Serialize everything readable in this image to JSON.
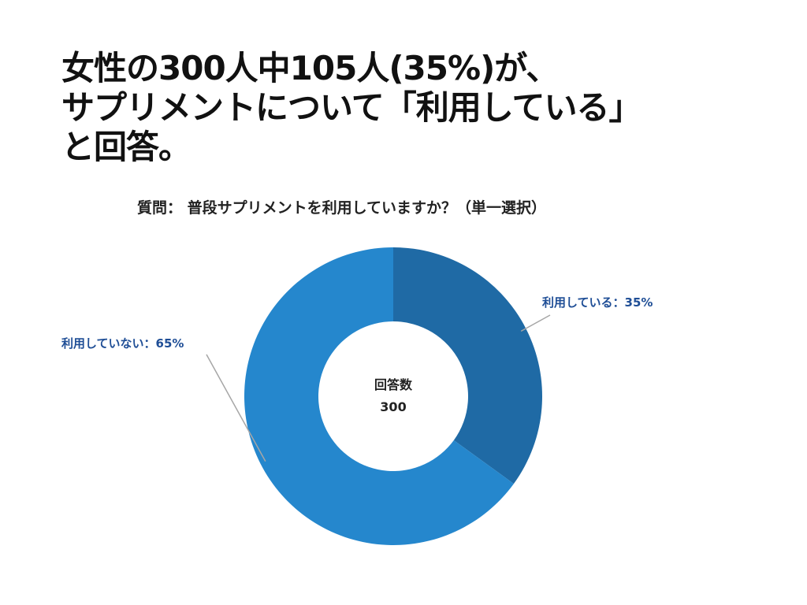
{
  "headline": {
    "line1": "女性の300人中105人(35%)が、",
    "line2": "サプリメントについて「利用している」",
    "line3": "と回答。"
  },
  "question": "質問： 普段サプリメントを利用していますか？（単一選択）",
  "chart_data": {
    "type": "pie",
    "variant": "donut",
    "title": "",
    "categories": [
      "利用している",
      "利用していない"
    ],
    "values": [
      35,
      65
    ],
    "unit": "%",
    "labels": [
      "利用している：35%",
      "利用していない：65%"
    ],
    "colors": [
      "#1f6aa5",
      "#2587cd"
    ],
    "label_color": "#1f4e96",
    "leader_line_color": "#a6a6a6",
    "center_label": "回答数",
    "center_value": "300"
  }
}
